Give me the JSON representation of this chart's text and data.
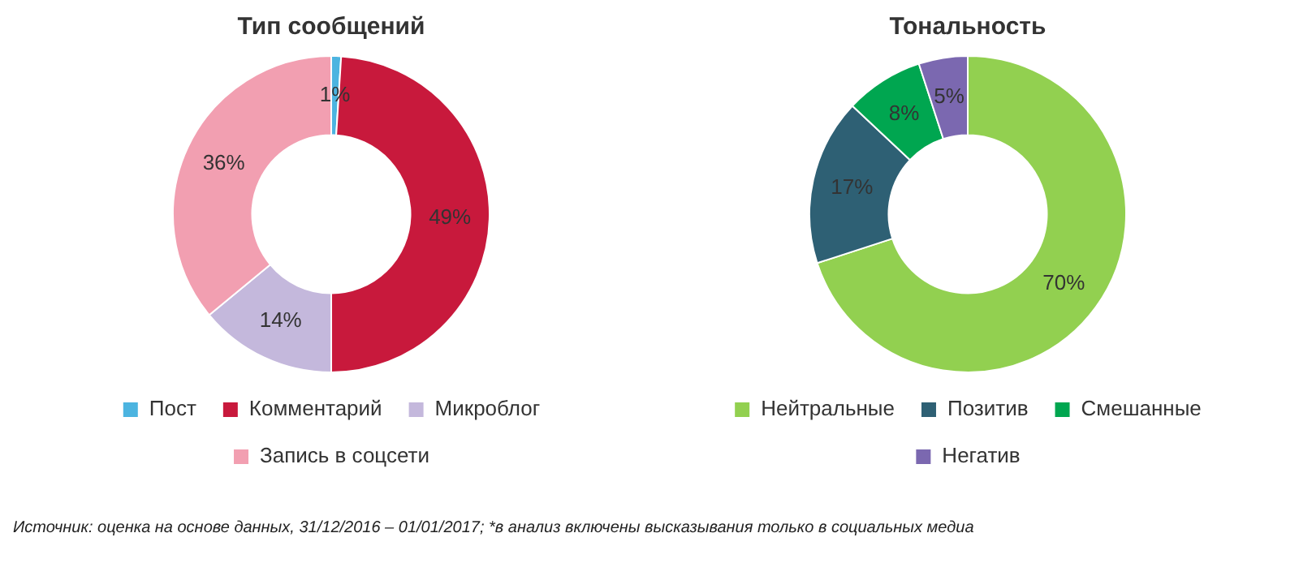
{
  "chart_data": [
    {
      "type": "donut",
      "title": "Тип сообщений",
      "categories": [
        "Пост",
        "Комментарий",
        "Микроблог",
        "Запись в соцсети"
      ],
      "values": [
        1,
        49,
        14,
        36
      ],
      "colors": [
        "#4cb4e0",
        "#c8193c",
        "#c4b8dc",
        "#f29fb1"
      ],
      "value_labels": [
        "1%",
        "49%",
        "14%",
        "36%"
      ],
      "legend": "bottom"
    },
    {
      "type": "donut",
      "title": "Тональность",
      "categories": [
        "Нейтральные",
        "Позитив",
        "Смешанные",
        "Негатив"
      ],
      "values": [
        70,
        17,
        8,
        5
      ],
      "colors": [
        "#92d050",
        "#2e6074",
        "#00a650",
        "#7b68b0"
      ],
      "value_labels": [
        "70%",
        "17%",
        "8%",
        "5%"
      ],
      "legend": "bottom",
      "annotations": [
        "Источник: оценка на основе данных, 31/12/2016 – 01/01/2017; *в анализ включены высказывания только в социальных медиа"
      ]
    }
  ]
}
